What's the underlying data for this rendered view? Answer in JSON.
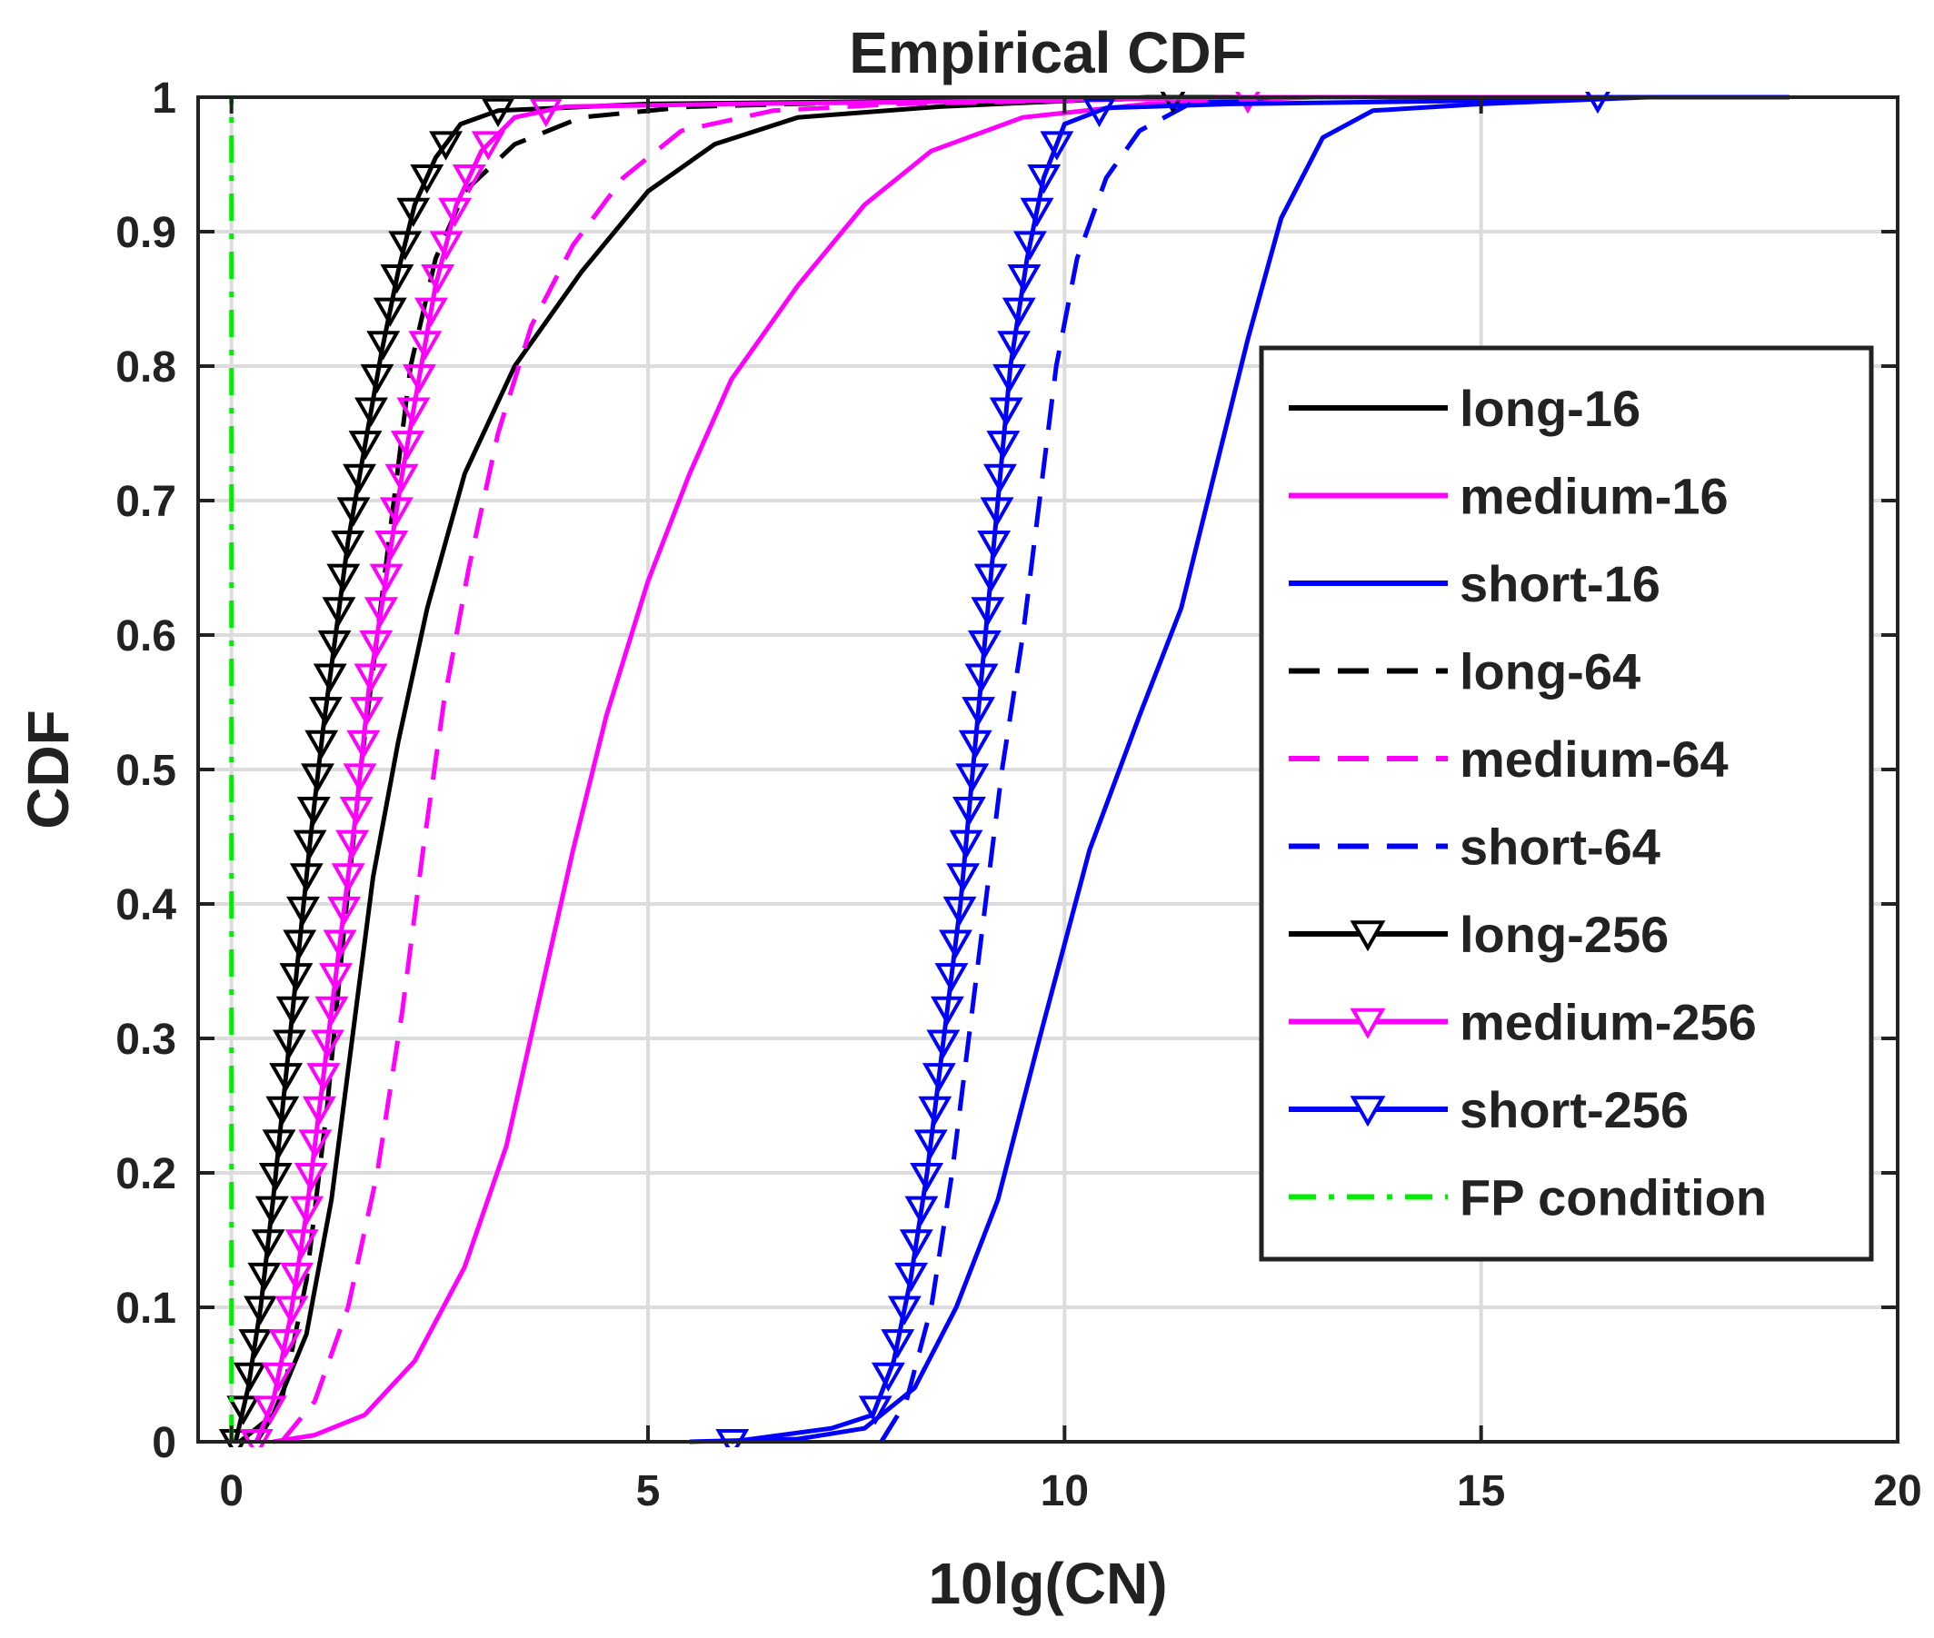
{
  "chart_data": {
    "type": "line",
    "title": "Empirical CDF",
    "xlabel": "10lg(CN)",
    "ylabel": "CDF",
    "xlim": [
      -0.4,
      20
    ],
    "ylim": [
      0,
      1
    ],
    "grid": true,
    "legend_position": "right",
    "x_ticks": [
      0,
      5,
      10,
      15,
      20
    ],
    "x_tick_labels": [
      "0",
      "5",
      "10",
      "15",
      "20"
    ],
    "y_ticks": [
      0,
      0.1,
      0.2,
      0.3,
      0.4,
      0.5,
      0.6,
      0.7,
      0.8,
      0.9,
      1
    ],
    "y_tick_labels": [
      "0",
      "0.1",
      "0.2",
      "0.3",
      "0.4",
      "0.5",
      "0.6",
      "0.7",
      "0.8",
      "0.9",
      "1"
    ],
    "series": [
      {
        "name": "long-16",
        "color": "#000000",
        "dash": "solid",
        "marker": "none",
        "points": [
          [
            0.1,
            0
          ],
          [
            0.5,
            0.02
          ],
          [
            0.9,
            0.08
          ],
          [
            1.2,
            0.18
          ],
          [
            1.45,
            0.3
          ],
          [
            1.7,
            0.42
          ],
          [
            2.0,
            0.52
          ],
          [
            2.35,
            0.62
          ],
          [
            2.8,
            0.72
          ],
          [
            3.4,
            0.8
          ],
          [
            4.2,
            0.87
          ],
          [
            5.0,
            0.93
          ],
          [
            5.8,
            0.965
          ],
          [
            6.8,
            0.985
          ],
          [
            8.5,
            0.993
          ],
          [
            11.0,
            1.0
          ],
          [
            16.0,
            1.0
          ]
        ]
      },
      {
        "name": "medium-16",
        "color": "#ff00ff",
        "dash": "solid",
        "marker": "none",
        "points": [
          [
            0.5,
            0
          ],
          [
            1.0,
            0.005
          ],
          [
            1.6,
            0.02
          ],
          [
            2.2,
            0.06
          ],
          [
            2.8,
            0.13
          ],
          [
            3.3,
            0.22
          ],
          [
            3.7,
            0.33
          ],
          [
            4.1,
            0.44
          ],
          [
            4.5,
            0.54
          ],
          [
            5.0,
            0.64
          ],
          [
            5.5,
            0.72
          ],
          [
            6.0,
            0.79
          ],
          [
            6.8,
            0.86
          ],
          [
            7.6,
            0.92
          ],
          [
            8.4,
            0.96
          ],
          [
            9.5,
            0.985
          ],
          [
            11,
            0.995
          ],
          [
            13,
            1.0
          ],
          [
            18.7,
            1.0
          ]
        ]
      },
      {
        "name": "short-16",
        "color": "#0000ff",
        "dash": "solid",
        "marker": "none",
        "points": [
          [
            5.5,
            0
          ],
          [
            6.8,
            0.002
          ],
          [
            7.6,
            0.01
          ],
          [
            8.2,
            0.04
          ],
          [
            8.7,
            0.1
          ],
          [
            9.2,
            0.18
          ],
          [
            9.7,
            0.3
          ],
          [
            10.3,
            0.44
          ],
          [
            10.9,
            0.54
          ],
          [
            11.4,
            0.62
          ],
          [
            11.8,
            0.72
          ],
          [
            12.2,
            0.82
          ],
          [
            12.6,
            0.91
          ],
          [
            13.1,
            0.97
          ],
          [
            13.7,
            0.99
          ],
          [
            15.0,
            0.995
          ],
          [
            17.0,
            1.0
          ]
        ]
      },
      {
        "name": "long-64",
        "color": "#000000",
        "dash": "dashed",
        "marker": "none",
        "points": [
          [
            0.3,
            0
          ],
          [
            0.6,
            0.03
          ],
          [
            0.9,
            0.12
          ],
          [
            1.15,
            0.25
          ],
          [
            1.35,
            0.38
          ],
          [
            1.55,
            0.5
          ],
          [
            1.75,
            0.6
          ],
          [
            1.95,
            0.7
          ],
          [
            2.15,
            0.8
          ],
          [
            2.45,
            0.88
          ],
          [
            2.8,
            0.93
          ],
          [
            3.4,
            0.965
          ],
          [
            4.2,
            0.985
          ],
          [
            5.5,
            0.993
          ],
          [
            8.0,
            0.997
          ],
          [
            11.5,
            1.0
          ]
        ]
      },
      {
        "name": "medium-64",
        "color": "#ff00ff",
        "dash": "dashed",
        "marker": "none",
        "points": [
          [
            0.6,
            0
          ],
          [
            1.0,
            0.03
          ],
          [
            1.4,
            0.1
          ],
          [
            1.75,
            0.2
          ],
          [
            2.05,
            0.32
          ],
          [
            2.3,
            0.44
          ],
          [
            2.55,
            0.55
          ],
          [
            2.85,
            0.65
          ],
          [
            3.2,
            0.75
          ],
          [
            3.6,
            0.83
          ],
          [
            4.1,
            0.89
          ],
          [
            4.7,
            0.94
          ],
          [
            5.4,
            0.975
          ],
          [
            6.5,
            0.99
          ],
          [
            8,
            0.995
          ],
          [
            12,
            1.0
          ]
        ]
      },
      {
        "name": "short-64",
        "color": "#0000ff",
        "dash": "dashed",
        "marker": "none",
        "points": [
          [
            7.8,
            0
          ],
          [
            8.1,
            0.03
          ],
          [
            8.4,
            0.1
          ],
          [
            8.65,
            0.2
          ],
          [
            8.85,
            0.3
          ],
          [
            9.05,
            0.4
          ],
          [
            9.25,
            0.5
          ],
          [
            9.5,
            0.6
          ],
          [
            9.7,
            0.7
          ],
          [
            9.9,
            0.8
          ],
          [
            10.15,
            0.88
          ],
          [
            10.5,
            0.94
          ],
          [
            10.9,
            0.975
          ],
          [
            11.5,
            0.995
          ],
          [
            12.5,
            1.0
          ]
        ]
      },
      {
        "name": "long-256",
        "color": "#000000",
        "dash": "solid",
        "marker": "triangle-down",
        "points": [
          [
            0.05,
            0
          ],
          [
            0.2,
            0.04
          ],
          [
            0.35,
            0.1
          ],
          [
            0.5,
            0.18
          ],
          [
            0.65,
            0.27
          ],
          [
            0.8,
            0.36
          ],
          [
            0.95,
            0.45
          ],
          [
            1.1,
            0.53
          ],
          [
            1.25,
            0.6
          ],
          [
            1.4,
            0.67
          ],
          [
            1.6,
            0.74
          ],
          [
            1.8,
            0.81
          ],
          [
            2.0,
            0.87
          ],
          [
            2.2,
            0.92
          ],
          [
            2.45,
            0.955
          ],
          [
            2.75,
            0.98
          ],
          [
            3.2,
            0.99
          ],
          [
            5,
            0.995
          ],
          [
            8,
            0.997
          ],
          [
            11.3,
            1.0
          ]
        ]
      },
      {
        "name": "medium-256",
        "color": "#ff00ff",
        "dash": "solid",
        "marker": "triangle-down",
        "points": [
          [
            0.3,
            0
          ],
          [
            0.5,
            0.03
          ],
          [
            0.7,
            0.09
          ],
          [
            0.9,
            0.17
          ],
          [
            1.1,
            0.27
          ],
          [
            1.3,
            0.37
          ],
          [
            1.5,
            0.47
          ],
          [
            1.65,
            0.56
          ],
          [
            1.85,
            0.64
          ],
          [
            2.05,
            0.72
          ],
          [
            2.25,
            0.79
          ],
          [
            2.45,
            0.86
          ],
          [
            2.7,
            0.92
          ],
          [
            3.0,
            0.96
          ],
          [
            3.4,
            0.985
          ],
          [
            4.0,
            0.993
          ],
          [
            6,
            0.995
          ],
          [
            9,
            0.997
          ],
          [
            12.2,
            1.0
          ],
          [
            18.7,
            1.0
          ]
        ]
      },
      {
        "name": "short-256",
        "color": "#0000ff",
        "dash": "solid",
        "marker": "triangle-down",
        "points": [
          [
            6.0,
            0
          ],
          [
            7.2,
            0.01
          ],
          [
            7.7,
            0.02
          ],
          [
            7.95,
            0.06
          ],
          [
            8.15,
            0.12
          ],
          [
            8.35,
            0.2
          ],
          [
            8.55,
            0.3
          ],
          [
            8.75,
            0.4
          ],
          [
            8.9,
            0.5
          ],
          [
            9.05,
            0.6
          ],
          [
            9.2,
            0.7
          ],
          [
            9.35,
            0.8
          ],
          [
            9.55,
            0.88
          ],
          [
            9.75,
            0.94
          ],
          [
            10.0,
            0.98
          ],
          [
            10.5,
            0.992
          ],
          [
            12,
            0.995
          ],
          [
            14.5,
            0.997
          ],
          [
            16.4,
            1.0
          ],
          [
            18.7,
            1.0
          ]
        ]
      },
      {
        "name": "FP condition",
        "color": "#00ee00",
        "dash": "dashdot",
        "marker": "none",
        "points": [
          [
            0,
            0
          ],
          [
            0,
            1
          ]
        ]
      }
    ]
  }
}
